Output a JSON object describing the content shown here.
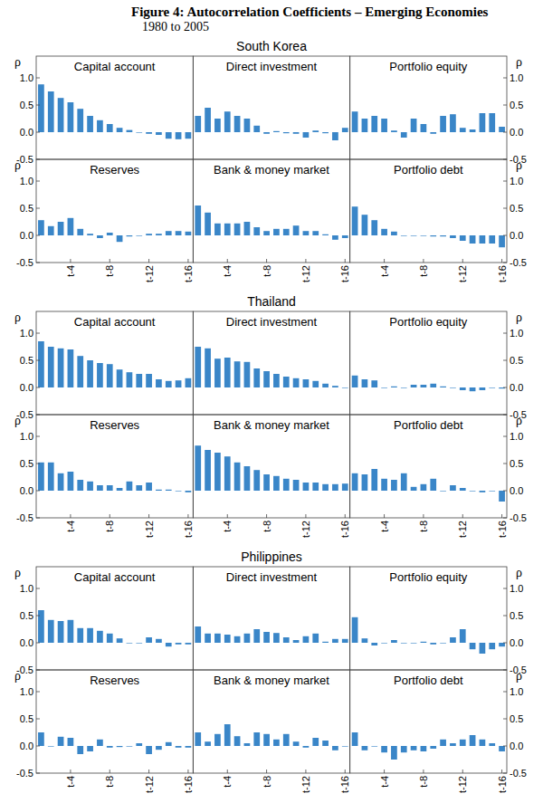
{
  "title": "Figure 4: Autocorrelation Coefficients – Emerging Economies",
  "subtitle": "1980 to 2005",
  "chart_data": [
    {
      "type": "bar",
      "title": "South Korea",
      "y_label": "ρ",
      "color": "#3a86c8",
      "categories": [
        null,
        null,
        null,
        "t-4",
        null,
        null,
        null,
        "t-8",
        null,
        null,
        null,
        "t-12",
        null,
        null,
        null,
        "t-16"
      ],
      "ylim": [
        -0.5,
        1.4
      ],
      "yticks": [
        {
          "value": -0.5,
          "label": "-0.5"
        },
        {
          "value": 0,
          "label": "0.0"
        },
        {
          "value": 0.5,
          "label": "0.5"
        },
        {
          "value": 1,
          "label": "1.0"
        }
      ],
      "series": [
        {
          "name": "Capital account",
          "values": [
            0.88,
            0.75,
            0.63,
            0.55,
            0.43,
            0.3,
            0.22,
            0.15,
            0.08,
            0.04,
            0.0,
            -0.03,
            -0.05,
            -0.12,
            -0.13,
            -0.12
          ]
        },
        {
          "name": "Direct investment",
          "values": [
            0.3,
            0.45,
            0.25,
            0.38,
            0.3,
            0.25,
            0.12,
            -0.03,
            0.02,
            -0.02,
            -0.03,
            -0.1,
            0.03,
            -0.02,
            -0.15,
            0.08
          ]
        },
        {
          "name": "Portfolio equity",
          "values": [
            0.38,
            0.25,
            0.3,
            0.25,
            0.03,
            -0.1,
            0.25,
            0.15,
            -0.03,
            0.3,
            0.33,
            0.08,
            0.05,
            0.35,
            0.35,
            0.1
          ]
        },
        {
          "name": "Reserves",
          "values": [
            0.28,
            0.17,
            0.25,
            0.32,
            0.12,
            0.03,
            -0.05,
            0.05,
            -0.12,
            -0.02,
            0.0,
            0.03,
            0.03,
            0.08,
            0.08,
            0.07
          ]
        },
        {
          "name": "Bank & money market",
          "values": [
            0.55,
            0.42,
            0.22,
            0.22,
            0.22,
            0.25,
            0.15,
            0.08,
            0.12,
            0.12,
            0.18,
            0.08,
            0.08,
            0.02,
            -0.08,
            -0.05
          ]
        },
        {
          "name": "Portfolio debt",
          "values": [
            0.53,
            0.38,
            0.28,
            0.12,
            0.07,
            0.0,
            0.0,
            0.0,
            -0.02,
            -0.02,
            -0.05,
            -0.1,
            -0.15,
            -0.15,
            -0.15,
            -0.22
          ]
        }
      ]
    },
    {
      "type": "bar",
      "title": "Thailand",
      "y_label": "ρ",
      "color": "#3a86c8",
      "categories": [
        null,
        null,
        null,
        "t-4",
        null,
        null,
        null,
        "t-8",
        null,
        null,
        null,
        "t-12",
        null,
        null,
        null,
        "t-16"
      ],
      "ylim": [
        -0.5,
        1.4
      ],
      "yticks": [
        {
          "value": -0.5,
          "label": "-0.5"
        },
        {
          "value": 0,
          "label": "0.0"
        },
        {
          "value": 0.5,
          "label": "0.5"
        },
        {
          "value": 1,
          "label": "1.0"
        }
      ],
      "series": [
        {
          "name": "Capital account",
          "values": [
            0.85,
            0.75,
            0.72,
            0.7,
            0.58,
            0.5,
            0.45,
            0.43,
            0.33,
            0.28,
            0.25,
            0.25,
            0.15,
            0.12,
            0.13,
            0.17
          ]
        },
        {
          "name": "Direct investment",
          "values": [
            0.75,
            0.72,
            0.53,
            0.55,
            0.48,
            0.47,
            0.35,
            0.3,
            0.25,
            0.2,
            0.17,
            0.15,
            0.12,
            0.07,
            0.03,
            0.0
          ]
        },
        {
          "name": "Portfolio equity",
          "values": [
            0.22,
            0.15,
            0.13,
            0.0,
            0.02,
            0.0,
            0.05,
            0.05,
            0.07,
            0.02,
            0.0,
            -0.05,
            -0.07,
            -0.05,
            0.0,
            -0.02
          ]
        },
        {
          "name": "Reserves",
          "values": [
            0.52,
            0.52,
            0.32,
            0.35,
            0.2,
            0.17,
            0.1,
            0.1,
            0.05,
            0.17,
            0.1,
            0.15,
            0.02,
            0.02,
            0.0,
            -0.03
          ]
        },
        {
          "name": "Bank & money market",
          "values": [
            0.83,
            0.75,
            0.7,
            0.63,
            0.52,
            0.45,
            0.38,
            0.3,
            0.27,
            0.22,
            0.2,
            0.15,
            0.15,
            0.12,
            0.12,
            0.13
          ]
        },
        {
          "name": "Portfolio debt",
          "values": [
            0.32,
            0.3,
            0.4,
            0.22,
            0.2,
            0.32,
            0.07,
            0.12,
            0.22,
            0.0,
            0.1,
            0.05,
            0.0,
            -0.03,
            0.0,
            -0.2
          ]
        }
      ]
    },
    {
      "type": "bar",
      "title": "Philippines",
      "y_label": "ρ",
      "color": "#3a86c8",
      "categories": [
        null,
        null,
        null,
        "t-4",
        null,
        null,
        null,
        "t-8",
        null,
        null,
        null,
        "t-12",
        null,
        null,
        null,
        "t-16"
      ],
      "ylim": [
        -0.5,
        1.4
      ],
      "yticks": [
        {
          "value": -0.5,
          "label": "-0.5"
        },
        {
          "value": 0,
          "label": "0.0"
        },
        {
          "value": 0.5,
          "label": "0.5"
        },
        {
          "value": 1,
          "label": "1.0"
        }
      ],
      "series": [
        {
          "name": "Capital account",
          "values": [
            0.6,
            0.42,
            0.4,
            0.42,
            0.27,
            0.27,
            0.22,
            0.17,
            0.08,
            0.0,
            0.0,
            0.1,
            0.07,
            -0.07,
            -0.03,
            -0.03
          ]
        },
        {
          "name": "Direct investment",
          "values": [
            0.3,
            0.17,
            0.17,
            0.15,
            0.12,
            0.17,
            0.25,
            0.2,
            0.18,
            0.1,
            0.05,
            0.12,
            0.17,
            0.02,
            0.07,
            0.07
          ]
        },
        {
          "name": "Portfolio equity",
          "values": [
            0.47,
            0.08,
            -0.05,
            0.0,
            0.05,
            0.0,
            0.0,
            0.02,
            -0.03,
            0.0,
            0.1,
            0.25,
            -0.12,
            -0.2,
            -0.12,
            -0.07
          ]
        },
        {
          "name": "Reserves",
          "values": [
            0.25,
            0.0,
            0.17,
            0.15,
            -0.15,
            -0.1,
            0.12,
            -0.03,
            -0.02,
            0.0,
            0.05,
            -0.15,
            -0.07,
            0.07,
            -0.03,
            -0.03
          ]
        },
        {
          "name": "Bank & money market",
          "values": [
            0.25,
            0.08,
            0.22,
            0.4,
            0.18,
            0.05,
            0.25,
            0.22,
            0.12,
            0.22,
            0.08,
            -0.03,
            0.15,
            0.1,
            -0.08,
            0.0
          ]
        },
        {
          "name": "Portfolio debt",
          "values": [
            0.25,
            -0.08,
            0.0,
            -0.12,
            -0.25,
            -0.12,
            -0.08,
            -0.1,
            -0.05,
            0.12,
            0.05,
            0.12,
            0.2,
            0.12,
            0.05,
            -0.1
          ]
        }
      ]
    }
  ]
}
